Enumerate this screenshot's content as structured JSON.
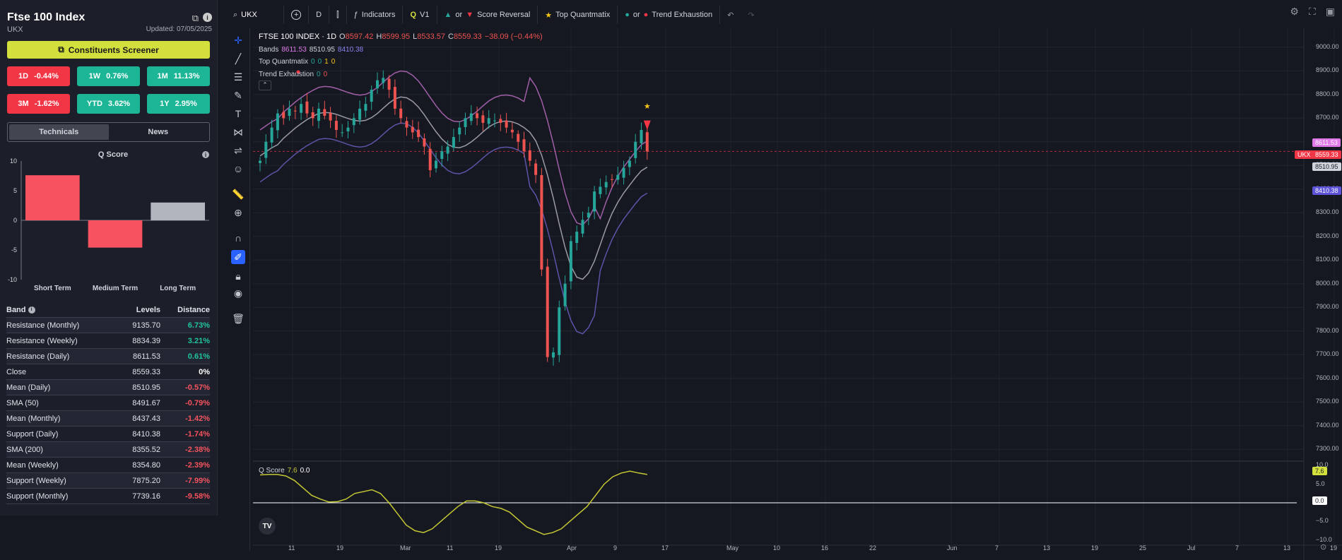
{
  "sidebar": {
    "title": "Ftse 100 Index",
    "symbol": "UKX",
    "updated": "Updated: 07/05/2025",
    "screener_label": "Constituents Screener",
    "performance": [
      {
        "label": "1D",
        "value": "-0.44%",
        "dir": "neg"
      },
      {
        "label": "1W",
        "value": "0.76%",
        "dir": "pos"
      },
      {
        "label": "1M",
        "value": "11.13%",
        "dir": "pos"
      },
      {
        "label": "3M",
        "value": "-1.62%",
        "dir": "neg"
      },
      {
        "label": "YTD",
        "value": "3.62%",
        "dir": "pos"
      },
      {
        "label": "1Y",
        "value": "2.95%",
        "dir": "pos"
      }
    ],
    "tabs": [
      {
        "label": "Technicals"
      },
      {
        "label": "News"
      }
    ],
    "qscore": {
      "title": "Q Score",
      "yticks": [
        "10",
        "5",
        "0",
        "-5",
        "-10"
      ],
      "categories": [
        "Short Term",
        "Medium Term",
        "Long Term"
      ],
      "values": [
        7.6,
        -4.6,
        3.0
      ],
      "colors": [
        "#f7525f",
        "#f7525f",
        "#b2b5be"
      ]
    },
    "band_table": {
      "headers": [
        "Band",
        "Levels",
        "Distance"
      ],
      "rows": [
        {
          "band": "Resistance (Monthly)",
          "level": "9135.70",
          "distance": "6.73%",
          "color": "#22c3a0"
        },
        {
          "band": "Resistance (Weekly)",
          "level": "8834.39",
          "distance": "3.21%",
          "color": "#22c3a0"
        },
        {
          "band": "Resistance (Daily)",
          "level": "8611.53",
          "distance": "0.61%",
          "color": "#22c3a0"
        },
        {
          "band": "Close",
          "level": "8559.33",
          "distance": "0%",
          "color": "#ffffff"
        },
        {
          "band": "Mean (Daily)",
          "level": "8510.95",
          "distance": "-0.57%",
          "color": "#f7525f"
        },
        {
          "band": "SMA (50)",
          "level": "8491.67",
          "distance": "-0.79%",
          "color": "#f7525f"
        },
        {
          "band": "Mean (Monthly)",
          "level": "8437.43",
          "distance": "-1.42%",
          "color": "#f7525f"
        },
        {
          "band": "Support (Daily)",
          "level": "8410.38",
          "distance": "-1.74%",
          "color": "#f7525f"
        },
        {
          "band": "SMA (200)",
          "level": "8355.52",
          "distance": "-2.38%",
          "color": "#f7525f"
        },
        {
          "band": "Mean (Weekly)",
          "level": "8354.80",
          "distance": "-2.39%",
          "color": "#f7525f"
        },
        {
          "band": "Support (Weekly)",
          "level": "7875.20",
          "distance": "-7.99%",
          "color": "#f7525f"
        },
        {
          "band": "Support (Monthly)",
          "level": "7739.16",
          "distance": "-9.58%",
          "color": "#f7525f"
        }
      ]
    }
  },
  "topbar": {
    "search_value": "UKX",
    "interval": "D",
    "indicators_label": "Indicators",
    "v1_label": "V1",
    "or1": "or",
    "score_reversal": "Score Reversal",
    "top_quantmatix": "Top Quantmatix",
    "or2": "or",
    "trend_exhaustion": "Trend Exhaustion"
  },
  "legend": {
    "title": "FTSE 100 INDEX · 1D",
    "o_label": "O",
    "o": "8597.42",
    "h_label": "H",
    "h": "8599.95",
    "l_label": "L",
    "l": "8533.57",
    "c_label": "C",
    "c": "8559.33",
    "change": "−38.09 (−0.44%)",
    "bands_label": "Bands",
    "bands_upper": "8611.53",
    "bands_mid": "8510.95",
    "bands_lower": "8410.38",
    "tq_label": "Top Quantmatix",
    "tq_values": [
      "0",
      "0",
      "1",
      "0"
    ],
    "te_label": "Trend Exhaustion",
    "te_values": [
      "0",
      "0"
    ],
    "qscore_label": "Q Score",
    "qscore_v1": "7.6",
    "qscore_v2": "0.0"
  },
  "price_axis": {
    "ticks": [
      "9000.00",
      "8900.00",
      "8800.00",
      "8700.00",
      "8600.00",
      "8500.00",
      "8400.00",
      "8300.00",
      "8200.00",
      "8100.00",
      "8000.00",
      "7900.00",
      "7800.00",
      "7700.00",
      "7600.00",
      "7500.00",
      "7400.00",
      "7300.00"
    ],
    "tag_upper": "8611.53",
    "tag_symbol": "UKX",
    "tag_close": "8559.33",
    "tag_mid": "8510.95",
    "tag_lower": "8410.38"
  },
  "osc_axis": {
    "ticks": [
      "10.0",
      "5.0",
      "0.0",
      "−5.0",
      "−10.0"
    ],
    "tag_value": "7.6",
    "tag_zero": "0.0"
  },
  "time_axis": {
    "labels": [
      "11",
      "19",
      "Mar",
      "11",
      "19",
      "Apr",
      "9",
      "17",
      "May",
      "10",
      "16",
      "22",
      "Jun",
      "7",
      "13",
      "19",
      "25",
      "Jul",
      "7",
      "13",
      "19"
    ]
  },
  "colors": {
    "up": "#26a69a",
    "down": "#ef5350",
    "band_upper": "#a05fa8",
    "band_mid": "#9a9aa6",
    "band_lower": "#5d53a8",
    "qscore_line": "#c5c833"
  }
}
